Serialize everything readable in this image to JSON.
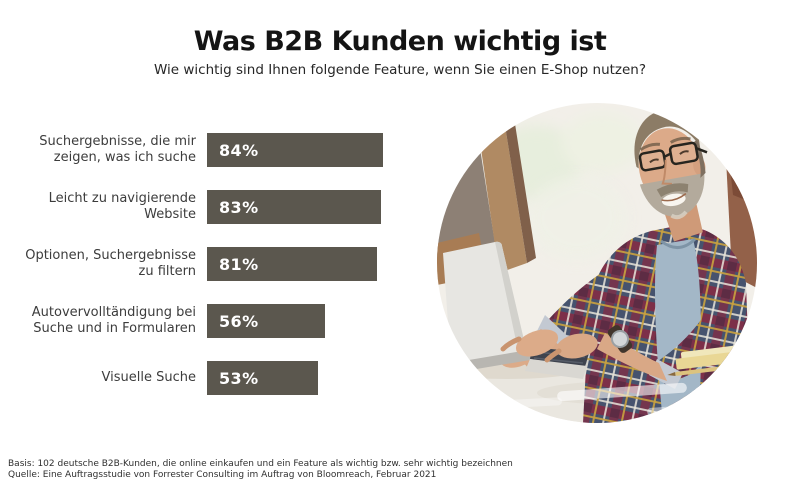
{
  "header": {
    "title": "Was B2B Kunden wichtig ist",
    "subtitle": "Wie wichtig sind Ihnen folgende Feature, wenn Sie einen E-Shop nutzen?"
  },
  "chart_data": {
    "type": "bar",
    "orientation": "horizontal",
    "categories": [
      "Suchergebnisse, die mir\nzeigen, was ich suche",
      "Leicht zu navigierende\nWebsite",
      "Optionen, Suchergebnisse\nzu filtern",
      "Autovervolltändigung bei\nSuche und in Formularen",
      "Visuelle Suche"
    ],
    "values": [
      84,
      83,
      81,
      56,
      53
    ],
    "value_labels": [
      "84%",
      "83%",
      "81%",
      "56%",
      "53%"
    ],
    "value_unit": "%",
    "xlim": [
      0,
      100
    ],
    "bar_color": "#5b574e",
    "value_label_color": "#ffffff",
    "title": "Was B2B Kunden wichtig ist",
    "subtitle": "Wie wichtig sind Ihnen folgende Feature, wenn Sie einen E-Shop nutzen?",
    "legend": null,
    "grid": false
  },
  "photo": {
    "alt": "Lächelnder Mann mit Brille und grauem Bart im Karohemd tippt an einem Holztisch auf einem Laptop"
  },
  "footer": {
    "basis": "Basis: 102 deutsche B2B-Kunden, die online einkaufen und ein Feature als wichtig bzw. sehr wichtig bezeichnen",
    "quelle": "Quelle: Eine Auftragsstudie von Forrester Consulting im Auftrag von Bloomreach, Februar 2021"
  }
}
